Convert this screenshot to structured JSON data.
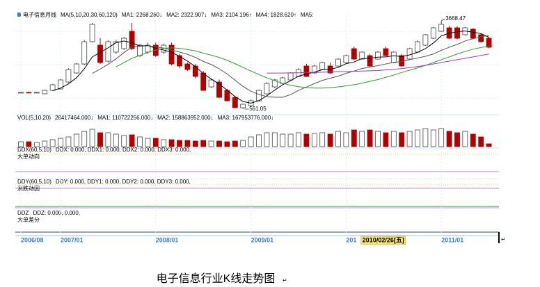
{
  "chart_data": {
    "type": "candlestick",
    "title": "电子信息月线",
    "indicator_header": "MA(5,10,20,30,60,120)",
    "categories": [
      "2006/08",
      null,
      null,
      null,
      null,
      "2007/01",
      null,
      null,
      null,
      null,
      null,
      null,
      null,
      null,
      null,
      null,
      null,
      "2008/01",
      null,
      null,
      null,
      null,
      null,
      null,
      null,
      null,
      null,
      null,
      null,
      "2009/01",
      null,
      null,
      null,
      null,
      null,
      null,
      null,
      null,
      null,
      null,
      null,
      "201",
      null,
      null,
      null,
      null,
      null,
      null,
      null,
      null,
      null,
      null,
      null,
      "2011/01",
      null,
      null,
      null,
      null,
      null,
      null
    ],
    "cursor_label": "2010/02/26[五]",
    "open": [
      1148,
      1150,
      1148,
      1099,
      1221,
      1270,
      1515,
      1833,
      2151,
      2934,
      2812,
      2249,
      2567,
      2689,
      3301,
      2445,
      2567,
      2812,
      2567,
      2812,
      2445,
      2151,
      2078,
      1833,
      1344,
      1515,
      1221,
      976,
      609,
      683,
      854,
      1099,
      1344,
      1466,
      1588,
      1711,
      2078,
      1833,
      1955,
      2078,
      2078,
      2200,
      2689,
      2322,
      2445,
      2322,
      2689,
      2200,
      2445,
      2322,
      2567,
      2812,
      3056,
      3301,
      3424,
      3424,
      3179,
      3374,
      3179,
      3056
    ],
    "high": [
      1170,
      1175,
      1170,
      1240,
      1440,
      1620,
      2000,
      2180,
      3000,
      3595,
      3056,
      2980,
      3000,
      3100,
      3595,
      2860,
      2900,
      2900,
      2860,
      2900,
      2500,
      2200,
      2150,
      1900,
      1620,
      1600,
      1270,
      1000,
      760,
      900,
      1250,
      1500,
      1620,
      1700,
      1860,
      2000,
      2150,
      2120,
      2230,
      2200,
      2350,
      2480,
      2760,
      2600,
      2500,
      2600,
      2760,
      2600,
      2500,
      2720,
      2980,
      3200,
      3450,
      3668.47,
      3500,
      3480,
      3450,
      3420,
      3220,
      3100
    ],
    "low": [
      1130,
      1125,
      1130,
      1080,
      1200,
      1250,
      1490,
      1800,
      2100,
      2900,
      2150,
      2200,
      2500,
      2640,
      2640,
      2400,
      2500,
      2400,
      2500,
      2100,
      2000,
      1900,
      1650,
      1200,
      1300,
      950,
      830,
      600,
      561.05,
      650,
      830,
      1080,
      1300,
      1440,
      1560,
      1690,
      1690,
      1800,
      1930,
      1800,
      2050,
      2180,
      2280,
      2300,
      2050,
      2300,
      2420,
      2180,
      2050,
      2300,
      2540,
      2790,
      3030,
      3280,
      3030,
      3030,
      3150,
      3030,
      2900,
      2700
    ],
    "close": [
      1150,
      1148,
      1150,
      1221,
      1417,
      1588,
      1955,
      2151,
      2934,
      3546,
      2200,
      2934,
      2934,
      3056,
      2689,
      2812,
      2812,
      2445,
      2812,
      2151,
      2078,
      1955,
      1711,
      1221,
      1588,
      976,
      854,
      609,
      732,
      854,
      1221,
      1466,
      1588,
      1662,
      1833,
      1955,
      1711,
      2078,
      2200,
      1833,
      2322,
      2445,
      2322,
      2567,
      2078,
      2567,
      2445,
      2567,
      2078,
      2689,
      2934,
      3179,
      3424,
      3546,
      3056,
      3056,
      3424,
      3056,
      2934,
      2738
    ],
    "up_color": "#ffffff",
    "up_outline": "#444444",
    "down_color": "#b00000",
    "ylim": [
      365,
      3962
    ],
    "series": [
      {
        "name": "MA1: 2268.280↓",
        "color": "#000000",
        "values": [
          null,
          null,
          null,
          null,
          1210,
          1300,
          1450,
          1660,
          1980,
          2400,
          2550,
          2720,
          2900,
          2960,
          2900,
          2780,
          2800,
          2700,
          2640,
          2560,
          2420,
          2250,
          2060,
          1810,
          1620,
          1440,
          1230,
          1000,
          830,
          770,
          860,
          1030,
          1230,
          1420,
          1560,
          1720,
          1800,
          1860,
          1950,
          1960,
          2030,
          2160,
          2220,
          2340,
          2350,
          2390,
          2400,
          2440,
          2410,
          2470,
          2560,
          2690,
          2890,
          3140,
          3230,
          3290,
          3310,
          3270,
          3220,
          3090
        ]
      },
      {
        "name": "MA2: 2322.907↓",
        "color": "#555555",
        "values": [
          null,
          null,
          null,
          null,
          null,
          null,
          null,
          null,
          null,
          1820,
          1970,
          2140,
          2330,
          2550,
          2750,
          2770,
          2790,
          2750,
          2710,
          2640,
          2570,
          2490,
          2380,
          2240,
          2130,
          1980,
          1800,
          1580,
          1360,
          1190,
          1080,
          1000,
          980,
          980,
          1070,
          1220,
          1340,
          1460,
          1570,
          1650,
          1720,
          1820,
          1900,
          1990,
          2040,
          2090,
          2150,
          2210,
          2230,
          2300,
          2360,
          2420,
          2500,
          2630,
          2740,
          2840,
          2960,
          3040,
          3110,
          3150
        ]
      },
      {
        "name": "MA3: 2104.196↑",
        "color": "#2e9e2e",
        "values": [
          null,
          null,
          null,
          null,
          null,
          null,
          null,
          null,
          null,
          null,
          null,
          null,
          2050,
          2200,
          2350,
          2450,
          2560,
          2640,
          2700,
          2720,
          2700,
          2660,
          2610,
          2530,
          2460,
          2380,
          2280,
          2160,
          2030,
          1900,
          1780,
          1660,
          1560,
          1470,
          1400,
          1350,
          1320,
          1300,
          1300,
          1320,
          1340,
          1380,
          1420,
          1470,
          1540,
          1600,
          1680,
          1760,
          1850,
          1930,
          2010,
          2100,
          2200,
          2300,
          2400,
          2500,
          2590,
          2670,
          2730,
          2780
        ]
      },
      {
        "name": "MA4: 1828.620↑",
        "color": "#a13aa8",
        "values": [
          null,
          null,
          null,
          null,
          null,
          null,
          null,
          null,
          null,
          null,
          null,
          null,
          null,
          null,
          null,
          null,
          null,
          null,
          null,
          null,
          null,
          null,
          null,
          null,
          null,
          null,
          null,
          null,
          null,
          null,
          null,
          1830,
          1830,
          1830,
          1840,
          1840,
          1850,
          1850,
          1860,
          1870,
          1880,
          1880,
          1890,
          1900,
          1910,
          1920,
          1940,
          1960,
          1990,
          2020,
          2060,
          2100,
          2150,
          2200,
          2250,
          2300,
          2350,
          2400,
          2450,
          2500
        ]
      }
    ],
    "last_label": {
      "text": "MA5:",
      "color": "#e0c020"
    },
    "volume": {
      "title": "VOL(5,10,20)",
      "labels": [
        {
          "text": "28417464.000↓",
          "color": "#000000"
        },
        {
          "text": "MA1: 110722256.000↓",
          "color": "#000000"
        },
        {
          "text": "MA2: 158863952.000↓",
          "color": "#2f4fa8"
        },
        {
          "text": "MA3: 167953776.000↓",
          "color": "#a13aa8"
        }
      ],
      "ylim": [
        0,
        210000000
      ],
      "values": [
        49000000,
        49000000,
        42000000,
        56000000,
        70000000,
        84000000,
        98000000,
        126000000,
        154000000,
        175000000,
        140000000,
        140000000,
        126000000,
        112000000,
        119000000,
        98000000,
        84000000,
        84000000,
        70000000,
        70000000,
        63000000,
        63000000,
        56000000,
        63000000,
        56000000,
        56000000,
        49000000,
        56000000,
        63000000,
        98000000,
        119000000,
        140000000,
        140000000,
        126000000,
        126000000,
        140000000,
        126000000,
        133000000,
        140000000,
        126000000,
        154000000,
        140000000,
        168000000,
        154000000,
        168000000,
        154000000,
        140000000,
        154000000,
        140000000,
        154000000,
        168000000,
        182000000,
        168000000,
        182000000,
        154000000,
        140000000,
        154000000,
        126000000,
        98000000,
        28417464
      ]
    },
    "panels": [
      {
        "title": "DDX(60,5,10)",
        "values_text": "DDX: 0.000, DDX1: 0.000, DDX2: 0.000, DDX3: 0.000,",
        "caption": "大单动向"
      },
      {
        "title": "DDY(60,5,10)",
        "values_text": "DDY: 0.000, DDY1: 0.000, DDY2: 0.000, DDY3: 0.000,",
        "caption": "涨跌动因"
      },
      {
        "title": "DDZ",
        "values_text": "DDZ: 0.000, 0.000,",
        "caption": "大单差分"
      }
    ],
    "caption": "电子信息行业K线走势图",
    "caption_mark": "↵"
  }
}
